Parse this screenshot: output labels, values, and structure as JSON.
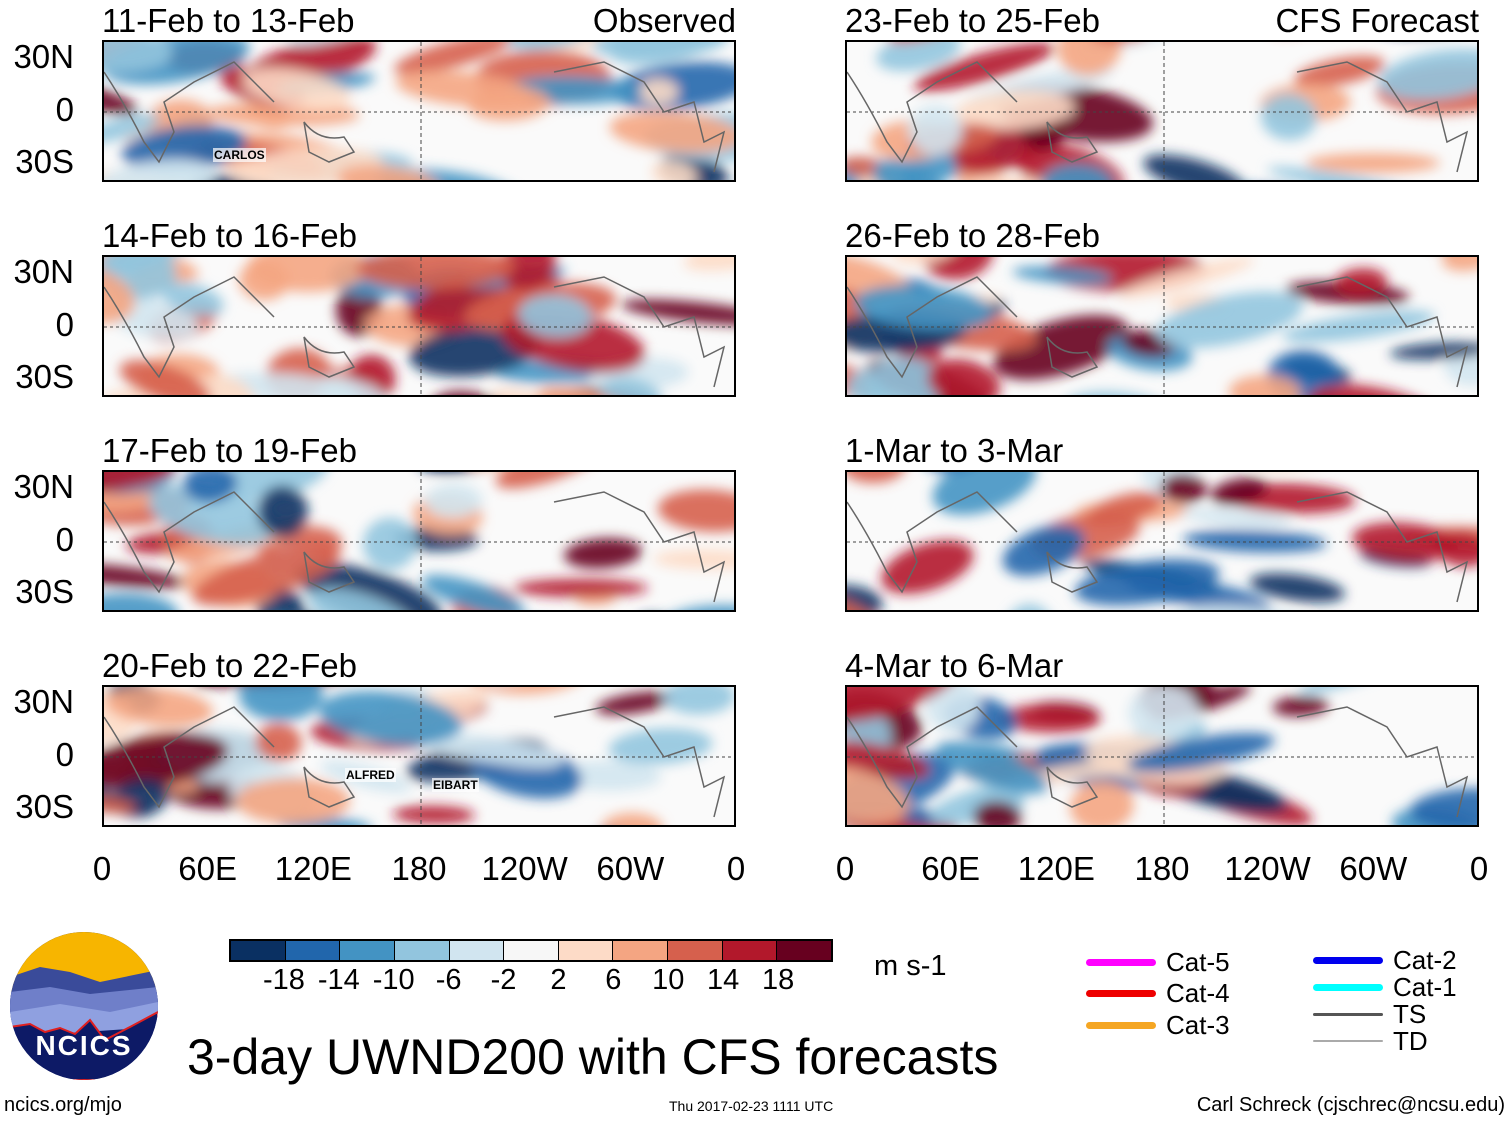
{
  "panels_left": [
    {
      "title": "11-Feb to 13-Feb",
      "tag": "Observed",
      "storms": [
        "CARLOS"
      ]
    },
    {
      "title": "14-Feb to 16-Feb",
      "tag": "",
      "storms": []
    },
    {
      "title": "17-Feb to 19-Feb",
      "tag": "",
      "storms": []
    },
    {
      "title": "20-Feb to 22-Feb",
      "tag": "",
      "storms": [
        "ALFRED",
        "EIBART"
      ]
    }
  ],
  "panels_right": [
    {
      "title": "23-Feb to 25-Feb",
      "tag": "CFS Forecast"
    },
    {
      "title": "26-Feb to 28-Feb",
      "tag": ""
    },
    {
      "title": "1-Mar to 3-Mar",
      "tag": ""
    },
    {
      "title": "4-Mar to 6-Mar",
      "tag": ""
    }
  ],
  "lat_labels": [
    "30N",
    "0",
    "30S"
  ],
  "lon_labels": [
    "0",
    "60E",
    "120E",
    "180",
    "120W",
    "60W",
    "0"
  ],
  "colorbar": {
    "colors": [
      "#0a3062",
      "#2166ac",
      "#4393c3",
      "#92c5de",
      "#d1e5f0",
      "#f7f7f7",
      "#fddbc7",
      "#f4a582",
      "#d6604d",
      "#b2182b",
      "#67001f"
    ],
    "labels": [
      "-18",
      "-14",
      "-10",
      "-6",
      "-2",
      "2",
      "6",
      "10",
      "14",
      "18"
    ],
    "units": "m s-1"
  },
  "legend": [
    {
      "label": "Cat-5",
      "color": "#ff00ff"
    },
    {
      "label": "Cat-4",
      "color": "#ee0000"
    },
    {
      "label": "Cat-3",
      "color": "#f5a623"
    },
    {
      "label": "Cat-2",
      "color": "#0000ee"
    },
    {
      "label": "Cat-1",
      "color": "#00ffff"
    },
    {
      "label": "TS",
      "color": "#555555"
    },
    {
      "label": "TD",
      "color": "#aaaaaa"
    }
  ],
  "title": "3-day UWND200 with CFS forecasts",
  "logo_text": "NCICS",
  "url": "ncics.org/mjo",
  "timestamp": "Thu 2017-02-23 1111 UTC",
  "credit": "Carl Schreck (cjschrec@ncsu.edu)"
}
